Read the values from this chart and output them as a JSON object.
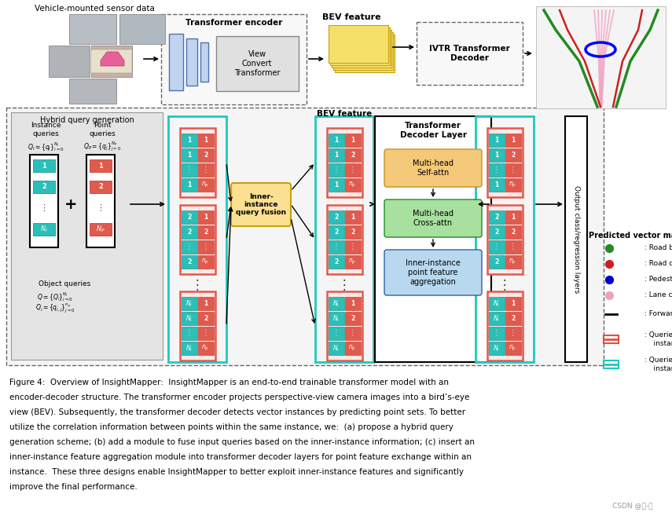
{
  "background_color": "#ffffff",
  "fig_width": 8.55,
  "fig_height": 6.57,
  "caption_line1": "Figure 4:  Overview of InsightMapper:  InsightMapper is an end-to-end trainable transformer model with an",
  "caption_line2": "encoder-decoder structure. The transformer encoder projects perspective-view camera images into a bird’s-eye",
  "caption_line3": "view (BEV). Subsequently, the transformer decoder detects vector instances by predicting point sets. To better",
  "caption_line4": "utilize the correlation information between points within the same instance, we:  (a) propose a hybrid query",
  "caption_line5": "generation scheme; (b) add a module to fuse input queries based on the inner-instance information; (c) insert an",
  "caption_line6": "inner-instance feature aggregation module into transformer decoder layers for point feature exchange within an",
  "caption_line7": "instance.  These three designs enable InsightMapper to better exploit inner-instance features and significantly",
  "caption_line8": "improve the final performance.",
  "watermark": "CSDN @古-月",
  "teal_fc": "#2bbfb8",
  "red_fc": "#e05a4e",
  "gray_bg": "#e8e8e8",
  "light_yellow": "#fdf0a0",
  "bev_yellow": "#f5e06a",
  "orange_attn": "#f5c97a",
  "green_attn": "#a8e0a0",
  "blue_attn": "#b8d8f0"
}
